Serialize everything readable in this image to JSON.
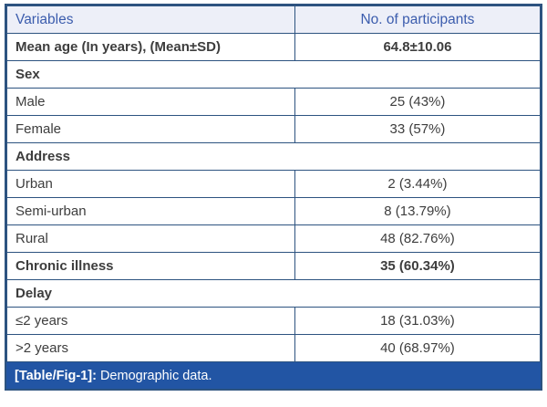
{
  "table": {
    "columns": [
      {
        "label": "Variables"
      },
      {
        "label": "No. of participants"
      }
    ],
    "rows": [
      {
        "type": "data",
        "bold": true,
        "label": "Mean age (In years), (Mean±SD)",
        "value": "64.8±10.06"
      },
      {
        "type": "section",
        "bold": true,
        "label": "Sex"
      },
      {
        "type": "data",
        "bold": false,
        "label": "Male",
        "value": "25 (43%)"
      },
      {
        "type": "data",
        "bold": false,
        "label": "Female",
        "value": "33 (57%)"
      },
      {
        "type": "section",
        "bold": true,
        "label": "Address"
      },
      {
        "type": "data",
        "bold": false,
        "label": "Urban",
        "value": "2 (3.44%)"
      },
      {
        "type": "data",
        "bold": false,
        "label": "Semi-urban",
        "value": "8 (13.79%)"
      },
      {
        "type": "data",
        "bold": false,
        "label": "Rural",
        "value": "48 (82.76%)"
      },
      {
        "type": "data",
        "bold": true,
        "label": "Chronic illness",
        "value": "35 (60.34%)"
      },
      {
        "type": "section",
        "bold": true,
        "label": "Delay"
      },
      {
        "type": "data",
        "bold": false,
        "label": "≤2 years",
        "value": "18 (31.03%)"
      },
      {
        "type": "data",
        "bold": false,
        "label": ">2 years",
        "value": "40 (68.97%)"
      }
    ],
    "caption": {
      "tag": "[Table/Fig-1]:",
      "text": "Demographic data."
    }
  },
  "colors": {
    "border": "#2d5380",
    "header_bg": "#edeff8",
    "header_text": "#3b5cad",
    "body_text": "#3d3d3d",
    "caption_bg": "#2255a4",
    "caption_text": "#ffffff"
  }
}
